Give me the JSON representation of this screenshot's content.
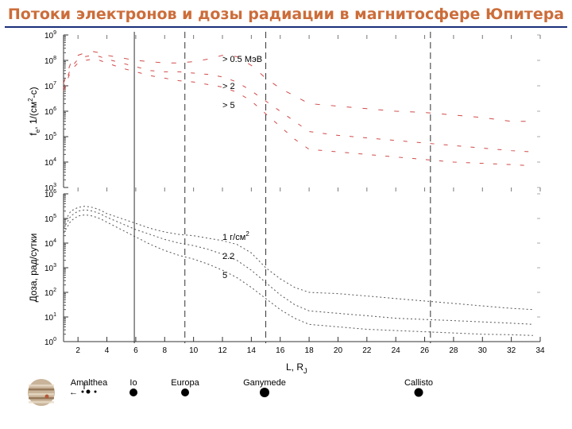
{
  "title": "Потоки электронов и дозы радиации в магнитосфере Юпитера",
  "chart_data": [
    {
      "type": "line",
      "panel": "top",
      "ylabel_parts": [
        "f",
        "e",
        ", 1/(см",
        "2",
        "-с)"
      ],
      "y_scale": "log",
      "ylim_exp": [
        3,
        9
      ],
      "y_tick_base": "10",
      "y_tick_exponents": [
        "3",
        "4",
        "5",
        "6",
        "7",
        "8",
        "9"
      ],
      "xlim": [
        1,
        34
      ],
      "grid": false,
      "series": [
        {
          "name": "> 0.5 МэВ",
          "color": "#d14a4a",
          "x": [
            1.0,
            1.5,
            2.0,
            2.5,
            3.0,
            3.5,
            4.0,
            5.0,
            6.0,
            7.0,
            8.0,
            9.0,
            10.0,
            11.0,
            12.0,
            13.0,
            14.0,
            15.0,
            16.0,
            17.0,
            18.0,
            20.0,
            22.0,
            24.0,
            26.0,
            28.0,
            30.0,
            32.0,
            33.5
          ],
          "y": [
            7.1,
            7.9,
            8.2,
            8.3,
            8.35,
            8.3,
            8.2,
            8.1,
            8.0,
            7.95,
            7.9,
            7.9,
            7.95,
            8.05,
            8.2,
            8.15,
            7.8,
            7.3,
            6.9,
            6.6,
            6.3,
            6.2,
            6.1,
            6.0,
            5.95,
            5.85,
            5.75,
            5.6,
            5.6
          ]
        },
        {
          "name": "> 2",
          "color": "#d14a4a",
          "x": [
            1.0,
            1.5,
            2.0,
            2.5,
            3.0,
            3.5,
            4.0,
            5.0,
            6.0,
            7.0,
            8.0,
            9.0,
            10.0,
            11.0,
            12.0,
            13.0,
            14.0,
            15.0,
            16.0,
            17.0,
            18.0,
            20.0,
            22.0,
            24.0,
            26.0,
            28.0,
            30.0,
            32.0,
            33.5
          ],
          "y": [
            6.9,
            7.7,
            8.05,
            8.15,
            8.2,
            8.15,
            8.05,
            7.9,
            7.75,
            7.6,
            7.55,
            7.55,
            7.5,
            7.45,
            7.35,
            7.15,
            6.8,
            6.4,
            6.0,
            5.6,
            5.2,
            5.05,
            4.95,
            4.85,
            4.75,
            4.65,
            4.55,
            4.45,
            4.4
          ]
        },
        {
          "name": "> 5",
          "color": "#d14a4a",
          "x": [
            1.0,
            1.5,
            2.0,
            2.5,
            3.0,
            3.5,
            4.0,
            5.0,
            6.0,
            7.0,
            8.0,
            9.0,
            10.0,
            11.0,
            12.0,
            13.0,
            14.0,
            15.0,
            16.0,
            17.0,
            18.0,
            20.0,
            22.0,
            24.0,
            26.0,
            28.0,
            30.0,
            32.0,
            33.5
          ],
          "y": [
            6.8,
            7.6,
            7.9,
            8.0,
            8.05,
            8.0,
            7.9,
            7.7,
            7.55,
            7.4,
            7.3,
            7.2,
            7.15,
            7.05,
            6.95,
            6.75,
            6.4,
            5.9,
            5.4,
            4.9,
            4.5,
            4.4,
            4.3,
            4.2,
            4.1,
            4.0,
            3.95,
            3.9,
            3.85
          ]
        }
      ]
    },
    {
      "type": "line",
      "panel": "bottom",
      "ylabel": "Доза, рад/сутки",
      "y_scale": "log",
      "ylim_exp": [
        0,
        6
      ],
      "y_tick_base": "10",
      "y_tick_exponents": [
        "0",
        "1",
        "2",
        "3",
        "4",
        "5",
        "6"
      ],
      "xlim": [
        1,
        34
      ],
      "xticks": [
        "2",
        "4",
        "6",
        "8",
        "10",
        "12",
        "14",
        "16",
        "18",
        "20",
        "22",
        "24",
        "26",
        "28",
        "30",
        "32",
        "34"
      ],
      "xlabel_parts": [
        "L, R",
        "J"
      ],
      "grid": false,
      "series": [
        {
          "name": "1 г/см",
          "name_sup": "2",
          "color": "#555555",
          "x": [
            1.0,
            1.5,
            2.0,
            2.5,
            3.0,
            3.5,
            4.0,
            5.0,
            6.0,
            7.0,
            8.0,
            9.0,
            10.0,
            11.0,
            12.0,
            13.0,
            14.0,
            15.0,
            16.0,
            17.0,
            18.0,
            20.0,
            22.0,
            24.0,
            26.0,
            28.0,
            30.0,
            32.0,
            33.5
          ],
          "y": [
            4.8,
            5.3,
            5.45,
            5.5,
            5.45,
            5.35,
            5.2,
            5.0,
            4.8,
            4.6,
            4.45,
            4.35,
            4.3,
            4.2,
            4.1,
            3.95,
            3.6,
            3.0,
            2.55,
            2.2,
            2.0,
            1.95,
            1.85,
            1.75,
            1.65,
            1.55,
            1.45,
            1.35,
            1.3
          ]
        },
        {
          "name": "2.2",
          "color": "#555555",
          "x": [
            1.0,
            1.5,
            2.0,
            2.5,
            3.0,
            3.5,
            4.0,
            5.0,
            6.0,
            7.0,
            8.0,
            9.0,
            10.0,
            11.0,
            12.0,
            13.0,
            14.0,
            15.0,
            16.0,
            17.0,
            18.0,
            20.0,
            22.0,
            24.0,
            26.0,
            28.0,
            30.0,
            32.0,
            33.5
          ],
          "y": [
            4.6,
            5.1,
            5.3,
            5.35,
            5.3,
            5.2,
            5.05,
            4.8,
            4.55,
            4.35,
            4.15,
            4.0,
            3.9,
            3.75,
            3.55,
            3.3,
            2.9,
            2.4,
            1.9,
            1.5,
            1.25,
            1.15,
            1.05,
            0.95,
            0.9,
            0.85,
            0.8,
            0.75,
            0.7
          ]
        },
        {
          "name": "5",
          "color": "#555555",
          "x": [
            1.0,
            1.5,
            2.0,
            2.5,
            3.0,
            3.5,
            4.0,
            5.0,
            6.0,
            7.0,
            8.0,
            9.0,
            10.0,
            11.0,
            12.0,
            13.0,
            14.0,
            15.0,
            16.0,
            17.0,
            18.0,
            20.0,
            22.0,
            24.0,
            26.0,
            28.0,
            30.0,
            32.0,
            33.5
          ],
          "y": [
            4.4,
            4.9,
            5.1,
            5.15,
            5.1,
            5.0,
            4.85,
            4.55,
            4.25,
            3.95,
            3.7,
            3.5,
            3.35,
            3.15,
            2.9,
            2.6,
            2.2,
            1.75,
            1.3,
            0.95,
            0.7,
            0.6,
            0.5,
            0.45,
            0.4,
            0.35,
            0.3,
            0.28,
            0.25
          ]
        }
      ]
    }
  ],
  "moon_lines": [
    {
      "name": "Io",
      "L": 5.9,
      "dashed": false
    },
    {
      "name": "Europa",
      "L": 9.4,
      "dashed": true
    },
    {
      "name": "Ganymede",
      "L": 15.0,
      "dashed": true
    },
    {
      "name": "Callisto",
      "L": 26.4,
      "dashed": true
    }
  ],
  "moons": [
    {
      "name": "Amalthea",
      "icon": "jupiter-planet-icon"
    },
    {
      "name": "Io",
      "icon": "io-moon-icon"
    },
    {
      "name": "Europa",
      "icon": "europa-moon-icon"
    },
    {
      "name": "Ganymede",
      "icon": "ganymede-moon-icon"
    },
    {
      "name": "Callisto",
      "icon": "callisto-moon-icon"
    }
  ]
}
